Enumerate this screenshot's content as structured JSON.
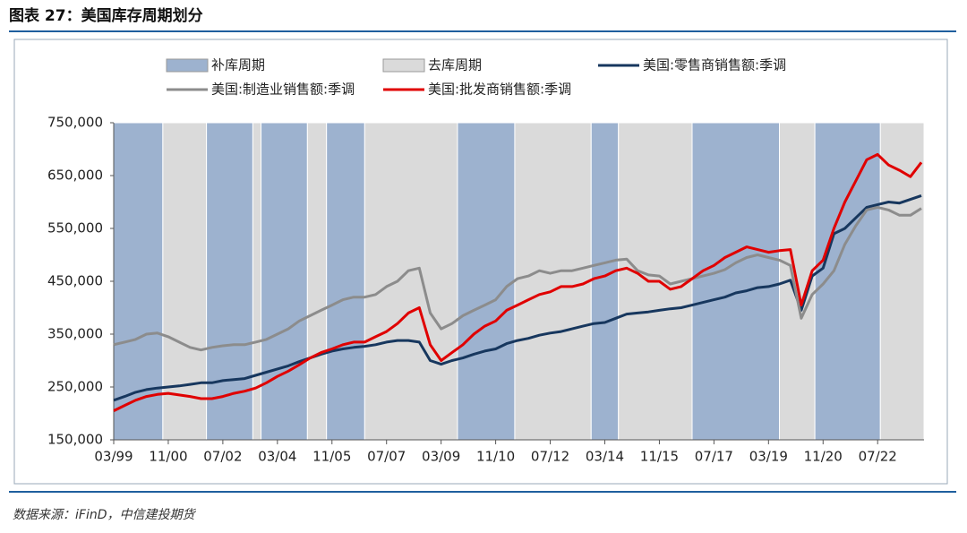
{
  "chart_data": {
    "type": "line",
    "title": "图表 27：美国库存周期划分",
    "source": "数据来源：iFinD，中信建投期货",
    "band_types": [
      {
        "name": "补库周期",
        "color": "#9db2cf"
      },
      {
        "name": "去库周期",
        "color": "#dadada"
      }
    ],
    "bands": [
      {
        "start": "03/99",
        "end": "09/00",
        "kind": 0
      },
      {
        "start": "09/00",
        "end": "01/02",
        "kind": 1
      },
      {
        "start": "01/02",
        "end": "06/03",
        "kind": 0
      },
      {
        "start": "06/03",
        "end": "09/03",
        "kind": 1
      },
      {
        "start": "09/03",
        "end": "02/05",
        "kind": 0
      },
      {
        "start": "02/05",
        "end": "09/05",
        "kind": 1
      },
      {
        "start": "09/05",
        "end": "11/06",
        "kind": 0
      },
      {
        "start": "11/06",
        "end": "09/09",
        "kind": 1
      },
      {
        "start": "09/09",
        "end": "06/11",
        "kind": 0
      },
      {
        "start": "06/11",
        "end": "10/13",
        "kind": 1
      },
      {
        "start": "10/13",
        "end": "08/14",
        "kind": 0
      },
      {
        "start": "08/14",
        "end": "11/16",
        "kind": 1
      },
      {
        "start": "11/16",
        "end": "07/19",
        "kind": 0
      },
      {
        "start": "07/19",
        "end": "08/20",
        "kind": 1
      },
      {
        "start": "08/20",
        "end": "08/22",
        "kind": 0
      },
      {
        "start": "08/22",
        "end": "12/23",
        "kind": 1
      }
    ],
    "x": [
      "03/99",
      "07/99",
      "11/99",
      "03/00",
      "07/00",
      "11/00",
      "03/01",
      "07/01",
      "11/01",
      "03/02",
      "07/02",
      "11/02",
      "03/03",
      "07/03",
      "11/03",
      "03/04",
      "07/04",
      "11/04",
      "03/05",
      "07/05",
      "11/05",
      "03/06",
      "07/06",
      "11/06",
      "03/07",
      "07/07",
      "11/07",
      "03/08",
      "07/08",
      "11/08",
      "03/09",
      "07/09",
      "11/09",
      "03/10",
      "07/10",
      "11/10",
      "03/11",
      "07/11",
      "11/11",
      "03/12",
      "07/12",
      "11/12",
      "03/13",
      "07/13",
      "11/13",
      "03/14",
      "07/14",
      "11/14",
      "03/15",
      "07/15",
      "11/15",
      "03/16",
      "07/16",
      "11/16",
      "03/17",
      "07/17",
      "11/17",
      "03/18",
      "07/18",
      "11/18",
      "03/19",
      "07/19",
      "11/19",
      "03/20",
      "07/20",
      "11/20",
      "03/21",
      "07/21",
      "11/21",
      "03/22",
      "07/22",
      "11/22",
      "03/23",
      "07/23",
      "11/23"
    ],
    "xlim": [
      "03/99",
      "12/23"
    ],
    "xticks": [
      "03/99",
      "11/00",
      "07/02",
      "03/04",
      "11/05",
      "07/07",
      "03/09",
      "11/10",
      "07/12",
      "03/14",
      "11/15",
      "07/17",
      "03/19",
      "11/20",
      "07/22"
    ],
    "ylim": [
      150000,
      750000
    ],
    "yticks": [
      {
        "value": 150000,
        "label": "150,000"
      },
      {
        "value": 250000,
        "label": "250,000"
      },
      {
        "value": 350000,
        "label": "350,000"
      },
      {
        "value": 450000,
        "label": "450,000"
      },
      {
        "value": 550000,
        "label": "550,000"
      },
      {
        "value": 650000,
        "label": "650,000"
      },
      {
        "value": 750000,
        "label": "750,000"
      }
    ],
    "series": [
      {
        "name": "美国:零售商销售额:季调",
        "color": "#17375e",
        "values": [
          225000,
          232000,
          240000,
          245000,
          248000,
          250000,
          252000,
          255000,
          258000,
          258000,
          262000,
          264000,
          266000,
          272000,
          278000,
          284000,
          290000,
          298000,
          305000,
          312000,
          318000,
          322000,
          325000,
          327000,
          330000,
          335000,
          338000,
          338000,
          335000,
          300000,
          293000,
          300000,
          305000,
          312000,
          318000,
          322000,
          332000,
          338000,
          342000,
          348000,
          352000,
          355000,
          360000,
          365000,
          370000,
          372000,
          380000,
          388000,
          390000,
          392000,
          395000,
          398000,
          400000,
          405000,
          410000,
          415000,
          420000,
          428000,
          432000,
          438000,
          440000,
          445000,
          452000,
          395000,
          460000,
          475000,
          540000,
          550000,
          570000,
          590000,
          595000,
          600000,
          598000,
          605000,
          612000
        ]
      },
      {
        "name": "美国:制造业销售额:季调",
        "color": "#8c8c8c",
        "values": [
          330000,
          335000,
          340000,
          350000,
          352000,
          345000,
          335000,
          325000,
          320000,
          325000,
          328000,
          330000,
          330000,
          335000,
          340000,
          350000,
          360000,
          375000,
          385000,
          395000,
          405000,
          415000,
          420000,
          420000,
          425000,
          440000,
          450000,
          470000,
          475000,
          390000,
          360000,
          370000,
          385000,
          395000,
          405000,
          415000,
          440000,
          455000,
          460000,
          470000,
          465000,
          470000,
          470000,
          475000,
          480000,
          485000,
          490000,
          492000,
          470000,
          462000,
          460000,
          445000,
          450000,
          455000,
          460000,
          465000,
          472000,
          485000,
          495000,
          500000,
          495000,
          490000,
          480000,
          380000,
          425000,
          445000,
          470000,
          520000,
          555000,
          585000,
          590000,
          585000,
          575000,
          575000,
          588000
        ]
      },
      {
        "name": "美国:批发商销售额:季调",
        "color": "#e00000",
        "values": [
          205000,
          215000,
          225000,
          232000,
          236000,
          238000,
          235000,
          232000,
          228000,
          228000,
          232000,
          238000,
          242000,
          248000,
          258000,
          270000,
          280000,
          292000,
          305000,
          315000,
          322000,
          330000,
          335000,
          335000,
          345000,
          355000,
          370000,
          390000,
          400000,
          330000,
          300000,
          315000,
          330000,
          350000,
          365000,
          375000,
          395000,
          405000,
          415000,
          425000,
          430000,
          440000,
          440000,
          445000,
          455000,
          460000,
          470000,
          475000,
          465000,
          450000,
          450000,
          435000,
          440000,
          455000,
          470000,
          480000,
          495000,
          505000,
          515000,
          510000,
          505000,
          508000,
          510000,
          405000,
          470000,
          490000,
          550000,
          600000,
          640000,
          680000,
          690000,
          670000,
          660000,
          648000,
          675000
        ]
      }
    ]
  }
}
